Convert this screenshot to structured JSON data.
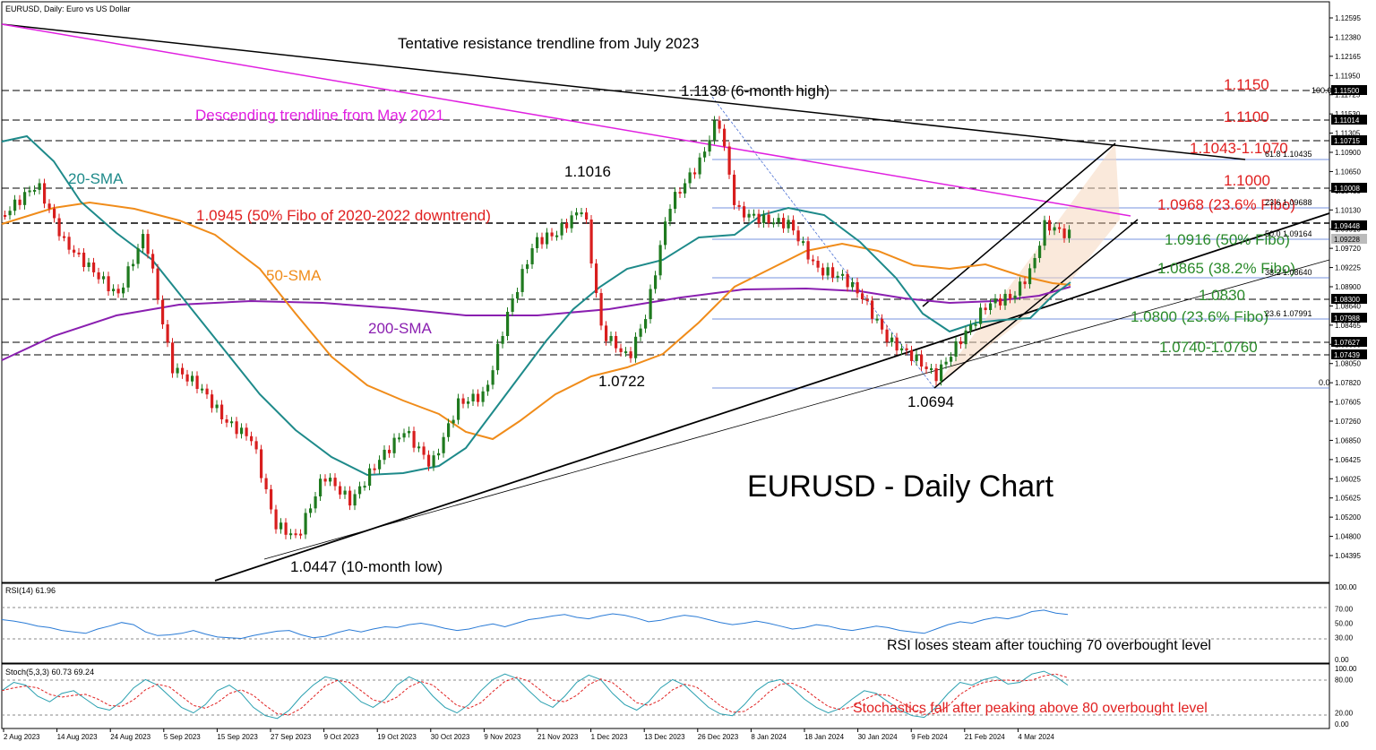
{
  "chart_data": {
    "type": "candlestick",
    "title": "EURUSD, Daily:  Euro vs US Dollar",
    "watermark": "EURUSD - Daily Chart",
    "x_tick_labels": [
      "2 Aug 2023",
      "14 Aug 2023",
      "24 Aug 2023",
      "5 Sep 2023",
      "15 Sep 2023",
      "27 Sep 2023",
      "9 Oct 2023",
      "19 Oct 2023",
      "30 Oct 2023",
      "9 Nov 2023",
      "21 Nov 2023",
      "1 Dec 2023",
      "13 Dec 2023",
      "26 Dec 2023",
      "8 Jan 2024",
      "18 Jan 2024",
      "30 Jan 2024",
      "9 Feb 2024",
      "21 Feb 2024",
      "4 Mar 2024"
    ],
    "y_tick_labels": [
      "1.12595",
      "1.12380",
      "1.12165",
      "1.11950",
      "1.11725",
      "1.11530",
      "1.11305",
      "1.10900",
      "1.10650",
      "1.10435",
      "1.10130",
      "1.09910",
      "1.09720",
      "1.09225",
      "1.08900",
      "1.08640",
      "1.08465",
      "1.08300",
      "1.08050",
      "1.07820",
      "1.07605",
      "1.07260",
      "1.06850",
      "1.06425",
      "1.06025",
      "1.05625",
      "1.05200",
      "1.04800",
      "1.04395"
    ],
    "price_markers": [
      {
        "label": "1.11500",
        "color": "#000000"
      },
      {
        "label": "1.11014",
        "color": "#000000"
      },
      {
        "label": "1.10715",
        "color": "#000000"
      },
      {
        "label": "1.10008",
        "color": "#000000"
      },
      {
        "label": "1.09448",
        "color": "#000000"
      },
      {
        "label": "1.09228",
        "color": "#bbbbbb"
      },
      {
        "label": "1.08300",
        "color": "#000000"
      },
      {
        "label": "1.07988",
        "color": "#000000"
      },
      {
        "label": "1.07627",
        "color": "#000000"
      },
      {
        "label": "1.07439",
        "color": "#000000"
      }
    ],
    "fibo_labels": [
      "100.0",
      "61.8 1.10435",
      "23.6 1.09688",
      "50.0 1.09164",
      "38.2 1.08640",
      "23.6 1.07991",
      "0.0"
    ],
    "annotations": {
      "trend_july": "Tentative resistance trendline from July 2023",
      "trend_may": "Descending trendline from May 2021",
      "high_6m": "1.1138 (6-month high)",
      "low_10m": "1.0447 (10-month low)",
      "h1016": "1.1016",
      "l1722": "1.0722",
      "l1694": "1.0694",
      "fib50": "1.0945 (50% Fibo of 2020-2022 downtrend)",
      "sma20": "20-SMA",
      "sma50": "50-SMA",
      "sma200": "200-SMA",
      "r1150": "1.1150",
      "r1100": "1.1100",
      "r1043": "1.1043-1.1070",
      "r1000": "1.1000",
      "r0968": "1.0968 (23.6% Fibo)",
      "r0916": "1.0916 (50% Fibo)",
      "r0865": "1.0865 (38.2% Fibo)",
      "r0830": "1.0830",
      "r0800": "1.0800 (23.6% Fibo)",
      "r0740": "1.0740-1.0760"
    },
    "rsi": {
      "header": "RSI(14) 61.96",
      "ticks": [
        "100.00",
        "70.00",
        "50.00",
        "30.00",
        "0.00"
      ],
      "note": "RSI loses steam after touching 70 overbought level",
      "values": [
        55,
        53,
        50,
        46,
        44,
        40,
        38,
        36,
        42,
        46,
        51,
        48,
        38,
        33,
        34,
        36,
        40,
        35,
        31,
        30,
        29,
        33,
        36,
        39,
        40,
        34,
        30,
        32,
        37,
        41,
        38,
        42,
        45,
        44,
        48,
        50,
        47,
        43,
        40,
        42,
        46,
        49,
        45,
        50,
        55,
        57,
        60,
        62,
        58,
        56,
        60,
        63,
        61,
        57,
        52,
        54,
        58,
        61,
        59,
        55,
        51,
        48,
        50,
        53,
        50,
        46,
        42,
        44,
        48,
        46,
        42,
        40,
        43,
        46,
        44,
        40,
        38,
        36,
        42,
        48,
        52,
        50,
        55,
        58,
        56,
        60,
        66,
        68,
        64,
        62
      ]
    },
    "stoch": {
      "header": "Stoch(5,3,3) 60.73 69.24",
      "ticks": [
        "100.00",
        "80.00",
        "20.00",
        "0.00"
      ],
      "note": "Stochastics fall after peaking above 80 overbought level",
      "values": [
        60,
        75,
        70,
        50,
        40,
        55,
        60,
        45,
        30,
        25,
        40,
        65,
        80,
        70,
        50,
        30,
        20,
        35,
        60,
        70,
        55,
        30,
        15,
        10,
        25,
        50,
        70,
        85,
        80,
        60,
        40,
        30,
        45,
        70,
        85,
        75,
        50,
        30,
        20,
        35,
        60,
        80,
        90,
        82,
        60,
        40,
        30,
        50,
        75,
        88,
        80,
        55,
        35,
        25,
        40,
        65,
        80,
        70,
        50,
        30,
        18,
        15,
        35,
        60,
        75,
        80,
        65,
        45,
        30,
        20,
        28,
        45,
        60,
        55,
        40,
        25,
        15,
        12,
        30,
        55,
        75,
        70,
        80,
        85,
        72,
        75,
        90,
        95,
        85,
        70
      ]
    }
  }
}
